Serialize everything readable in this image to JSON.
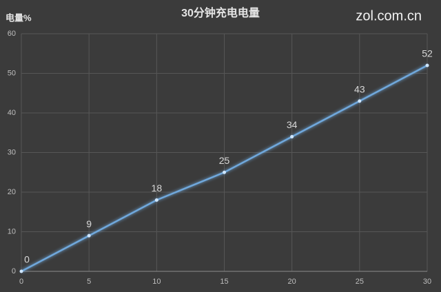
{
  "chart_data": {
    "type": "line",
    "title": "30分钟充电电量",
    "y_label": "电量%",
    "watermark": "zol.com.cn",
    "x": [
      0,
      5,
      10,
      15,
      20,
      25,
      30
    ],
    "series": [
      {
        "name": "电量",
        "color": "#6fa8dc",
        "values": [
          0,
          9,
          18,
          25,
          34,
          43,
          52
        ]
      }
    ],
    "xlim": [
      0,
      30
    ],
    "xticks": [
      0,
      5,
      10,
      15,
      20,
      25,
      30
    ],
    "ylim": [
      0,
      60
    ],
    "yticks": [
      0,
      10,
      20,
      30,
      40,
      50,
      60
    ],
    "grid": true
  }
}
